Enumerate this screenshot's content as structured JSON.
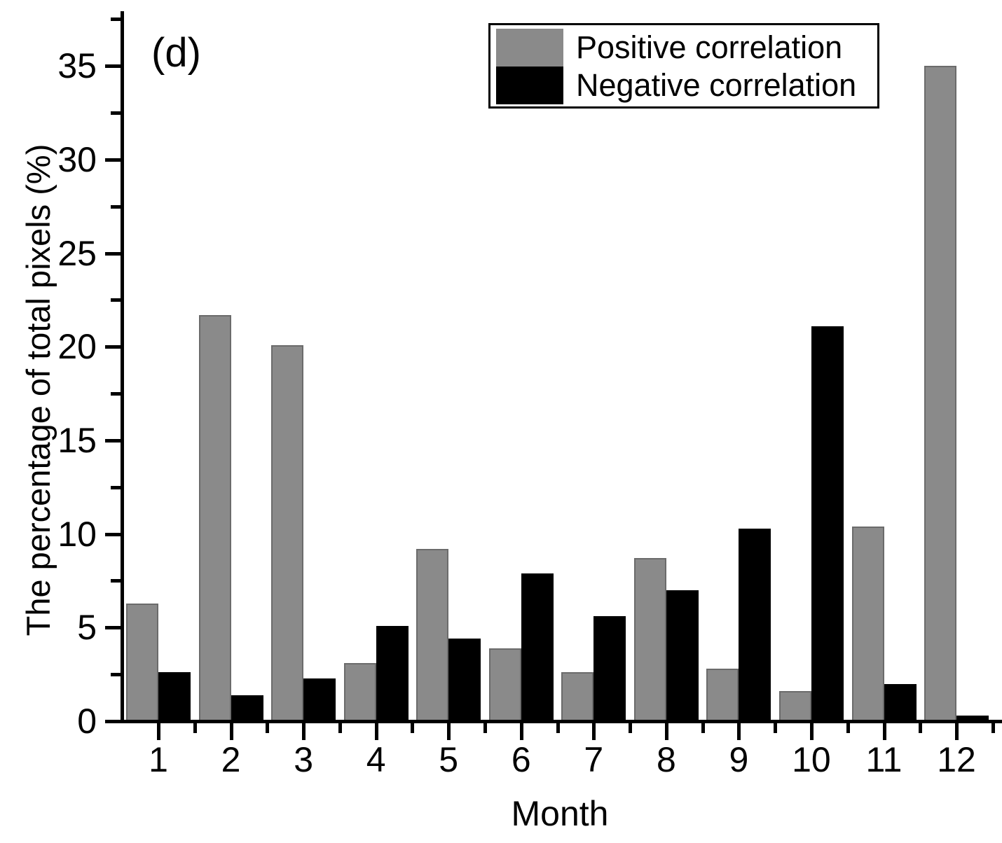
{
  "figure": {
    "panel_label": "(d)",
    "background": "#ffffff",
    "axis_color": "#000000"
  },
  "chart_data": {
    "type": "bar",
    "panel_label": "(d)",
    "title": "",
    "xlabel": "Month",
    "ylabel": "The percentage of total pixels (%)",
    "categories": [
      "1",
      "2",
      "3",
      "4",
      "5",
      "6",
      "7",
      "8",
      "9",
      "10",
      "11",
      "12"
    ],
    "series": [
      {
        "name": "Positive correlation",
        "color": "#8a8a8a",
        "values": [
          6.3,
          21.7,
          20.1,
          3.1,
          9.2,
          3.9,
          2.6,
          8.7,
          2.8,
          1.6,
          10.4,
          35.0
        ]
      },
      {
        "name": "Negative correlation",
        "color": "#000000",
        "values": [
          2.6,
          1.4,
          2.3,
          5.1,
          4.4,
          7.9,
          5.6,
          7.0,
          10.3,
          21.1,
          2.0,
          0.3
        ]
      }
    ],
    "ylim": [
      0,
      38
    ],
    "yticks": [
      0,
      5,
      10,
      15,
      20,
      25,
      30,
      35
    ],
    "y_minor_interval": 2.5,
    "x_minor_step": 1,
    "grid": false,
    "legend_position": "top-center-inside"
  }
}
